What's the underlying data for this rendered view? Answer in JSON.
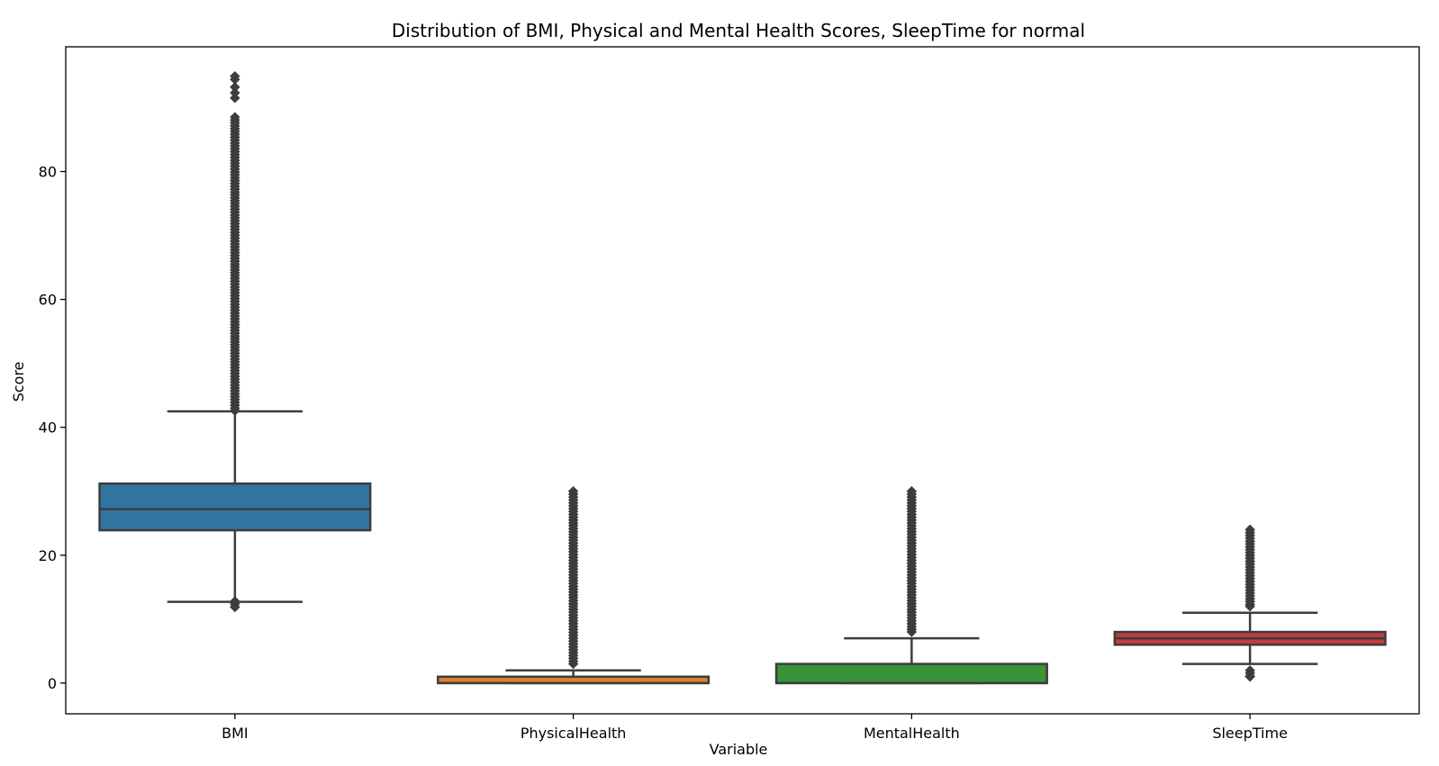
{
  "chart_data": {
    "type": "box",
    "title": "Distribution of BMI, Physical and Mental Health Scores, SleepTime for normal",
    "xlabel": "Variable",
    "ylabel": "Score",
    "ylim": [
      -4.8,
      99.5
    ],
    "yticks": [
      0,
      20,
      40,
      60,
      80
    ],
    "grid": false,
    "legend": "none",
    "categories": [
      "BMI",
      "PhysicalHealth",
      "MentalHealth",
      "SleepTime"
    ],
    "colors": [
      "#3274a1",
      "#e1812c",
      "#3a923a",
      "#c03d3e"
    ],
    "edge_color": "#3d3d3d",
    "boxes": [
      {
        "name": "BMI",
        "whisker_low": 12.7,
        "q1": 23.9,
        "median": 27.2,
        "q3": 31.2,
        "whisker_high": 42.5,
        "outlier_ranges": [
          [
            11.9,
            12.8
          ],
          [
            42.6,
            88.5
          ]
        ],
        "outliers": [
          91.5,
          92.3,
          93.2,
          94.4,
          94.9
        ]
      },
      {
        "name": "PhysicalHealth",
        "whisker_low": 0,
        "q1": 0,
        "median": 0,
        "q3": 1,
        "whisker_high": 2,
        "outlier_ranges": [
          [
            3,
            30
          ]
        ],
        "outliers": []
      },
      {
        "name": "MentalHealth",
        "whisker_low": 0,
        "q1": 0,
        "median": 0,
        "q3": 3,
        "whisker_high": 7,
        "outlier_ranges": [
          [
            8,
            30
          ]
        ],
        "outliers": []
      },
      {
        "name": "SleepTime",
        "whisker_low": 3,
        "q1": 6,
        "median": 7,
        "q3": 8,
        "whisker_high": 11,
        "outlier_ranges": [
          [
            1,
            2
          ],
          [
            12,
            24
          ]
        ],
        "outliers": []
      }
    ]
  }
}
